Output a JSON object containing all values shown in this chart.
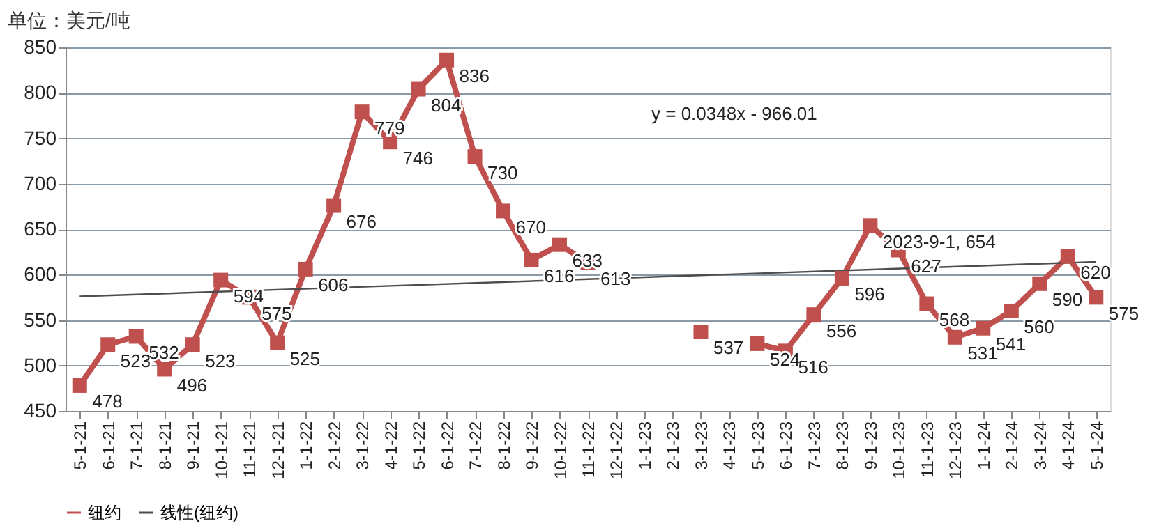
{
  "chart_data": {
    "type": "line",
    "ylabel": "单位：美元/吨",
    "categories": [
      "5-1-21",
      "6-1-21",
      "7-1-21",
      "8-1-21",
      "9-1-21",
      "10-1-21",
      "11-1-21",
      "12-1-21",
      "1-1-22",
      "2-1-22",
      "3-1-22",
      "4-1-22",
      "5-1-22",
      "6-1-22",
      "7-1-22",
      "8-1-22",
      "9-1-22",
      "10-1-22",
      "11-1-22",
      "12-1-22",
      "1-1-23",
      "2-1-23",
      "3-1-23",
      "4-1-23",
      "5-1-23",
      "6-1-23",
      "7-1-23",
      "8-1-23",
      "9-1-23",
      "10-1-23",
      "11-1-23",
      "12-1-23",
      "1-1-24",
      "2-1-24",
      "3-1-24",
      "4-1-24",
      "5-1-24"
    ],
    "series": [
      {
        "name": "纽约",
        "color": "#c0504d",
        "marker": "square",
        "values": [
          478,
          523,
          532,
          496,
          523,
          594,
          575,
          525,
          606,
          676,
          779,
          746,
          804,
          836,
          730,
          670,
          616,
          633,
          613,
          null,
          null,
          null,
          537,
          null,
          524,
          516,
          556,
          596,
          654,
          627,
          568,
          531,
          541,
          560,
          590,
          620,
          575
        ],
        "value_labels": [
          "478",
          "523",
          "532",
          "496",
          "523",
          "594",
          "575",
          "525",
          "606",
          "676",
          "779",
          "746",
          "804",
          "836",
          "730",
          "670",
          "616",
          "633",
          "613",
          null,
          null,
          null,
          "537",
          null,
          "524",
          "516",
          "556",
          "596",
          "2023-9-1, 654",
          "627",
          "568",
          "531",
          "541",
          "560",
          "590",
          "620",
          "575"
        ]
      },
      {
        "name": "线性(纽约)",
        "color": "#4d4d4d",
        "marker": "none",
        "x": [
          "5-1-21",
          "5-1-24"
        ],
        "values": [
          576,
          614
        ]
      }
    ],
    "annotations": [
      "y = 0.0348x - 966.01"
    ],
    "ylim": [
      450,
      850
    ],
    "yticks": [
      450,
      500,
      550,
      600,
      650,
      700,
      750,
      800,
      850
    ],
    "grid": "y",
    "legend": "bottom"
  }
}
